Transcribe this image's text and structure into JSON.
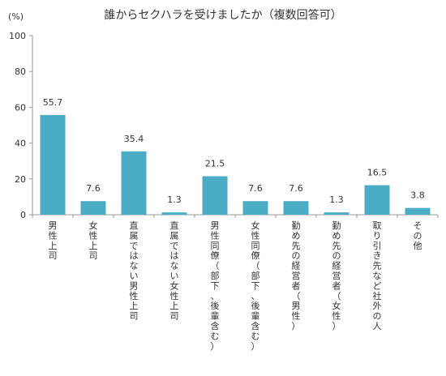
{
  "chart_data": {
    "type": "bar",
    "title": "誰からセクハラを受けましたか（複数回答可）",
    "y_unit": "(%)",
    "ylim": [
      0,
      100
    ],
    "yticks": [
      0,
      20,
      40,
      60,
      80,
      100
    ],
    "grid": false,
    "bar_color": "#4bacc6",
    "categories": [
      "男性上司",
      "女性上司",
      "直属ではない男性上司",
      "直属ではない女性上司",
      "男性同僚（部下、後輩含む）",
      "女性同僚（部下、後輩含む）",
      "勤め先の経営者（男性）",
      "勤め先の経営者（女性）",
      "取り引き先など社外の人",
      "その他"
    ],
    "values": [
      55.7,
      7.6,
      35.4,
      1.3,
      21.5,
      7.6,
      7.6,
      1.3,
      16.5,
      3.8
    ],
    "value_labels": [
      "55.7",
      "7.6",
      "35.4",
      "1.3",
      "21.5",
      "7.6",
      "7.6",
      "1.3",
      "16.5",
      "3.8"
    ]
  }
}
